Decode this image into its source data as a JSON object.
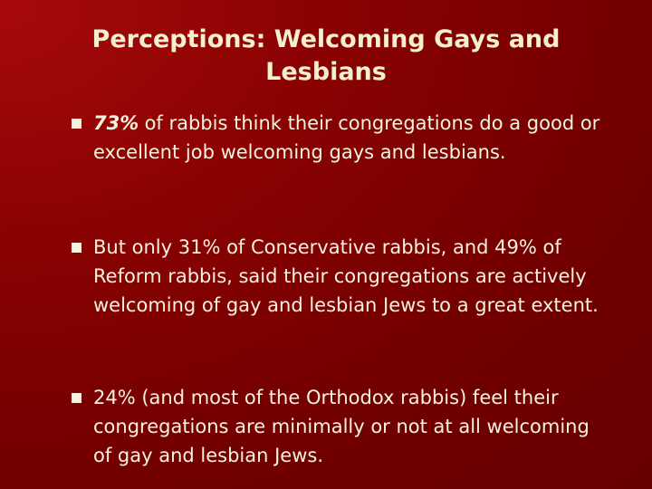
{
  "title": "Perceptions: Welcoming Gays and Lesbians",
  "bullets": [
    {
      "emphasis": "73%",
      "text": "of rabbis think their congregations do a good or excellent job welcoming gays and lesbians."
    },
    {
      "text": "But only 31% of Conservative rabbis, and 49% of Reform rabbis, said their congregations are actively welcoming of gay and lesbian Jews to a great extent."
    },
    {
      "text": "24% (and most of the Orthodox rabbis) feel their congregations are minimally or not at all welcoming of gay and lesbian Jews."
    }
  ]
}
